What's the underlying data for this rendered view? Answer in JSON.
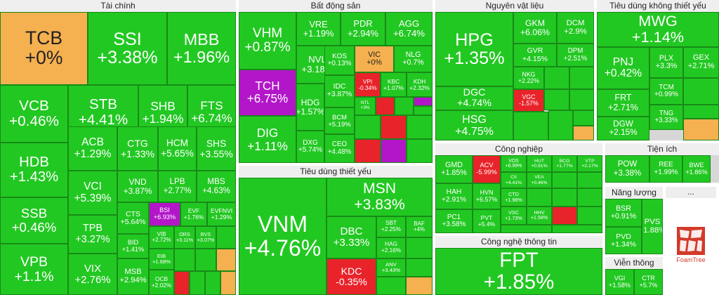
{
  "chart_data": {
    "type": "treemap",
    "colors": {
      "up": "#22c822",
      "ref": "#f5b04f",
      "ceiling": "#b316c9",
      "down": "#e8232a"
    },
    "sectors": [
      {
        "name": "Tài chính",
        "stocks": [
          {
            "ticker": "TCB",
            "change": "+0%",
            "status": "ref"
          },
          {
            "ticker": "SSI",
            "change": "+3.38%",
            "status": "up"
          },
          {
            "ticker": "MBB",
            "change": "+1.96%",
            "status": "up"
          },
          {
            "ticker": "VCB",
            "change": "+0.46%",
            "status": "up"
          },
          {
            "ticker": "STB",
            "change": "+4.41%",
            "status": "up"
          },
          {
            "ticker": "SHB",
            "change": "+1.94%",
            "status": "up"
          },
          {
            "ticker": "FTS",
            "change": "+6.74%",
            "status": "up"
          },
          {
            "ticker": "HDB",
            "change": "+1.43%",
            "status": "up"
          },
          {
            "ticker": "ACB",
            "change": "+1.29%",
            "status": "up"
          },
          {
            "ticker": "CTG",
            "change": "+1.33%",
            "status": "up"
          },
          {
            "ticker": "HCM",
            "change": "+5.65%",
            "status": "up"
          },
          {
            "ticker": "SHS",
            "change": "+3.55%",
            "status": "up"
          },
          {
            "ticker": "VCI",
            "change": "+5.39%",
            "status": "up"
          },
          {
            "ticker": "VND",
            "change": "+3.87%",
            "status": "up"
          },
          {
            "ticker": "LPB",
            "change": "+2.77%",
            "status": "up"
          },
          {
            "ticker": "MBS",
            "change": "+4.63%",
            "status": "up"
          },
          {
            "ticker": "SSB",
            "change": "+0.46%",
            "status": "up"
          },
          {
            "ticker": "TPB",
            "change": "+3.27%",
            "status": "up"
          },
          {
            "ticker": "CTS",
            "change": "+5.64%",
            "status": "up"
          },
          {
            "ticker": "BSI",
            "change": "+6.93%",
            "status": "ceiling"
          },
          {
            "ticker": "EVF",
            "change": "+1.76%",
            "status": "up"
          },
          {
            "ticker": "EVFNVI",
            "change": "+1.29%",
            "status": "up"
          },
          {
            "ticker": "BID",
            "change": "+1.41%",
            "status": "up"
          },
          {
            "ticker": "VIB",
            "change": "+2.72%",
            "status": "up"
          },
          {
            "ticker": "ORS",
            "change": "+3.11%",
            "status": "up"
          },
          {
            "ticker": "BVS",
            "change": "+3.07%",
            "status": "up"
          },
          {
            "ticker": "VPB",
            "change": "+1.1%",
            "status": "up"
          },
          {
            "ticker": "VIX",
            "change": "+2.76%",
            "status": "up"
          },
          {
            "ticker": "EIB",
            "change": "+1.68%",
            "status": "up"
          },
          {
            "ticker": "MSB",
            "change": "+2.94%",
            "status": "up"
          },
          {
            "ticker": "OCB",
            "change": "+2.02%",
            "status": "up"
          }
        ]
      },
      {
        "name": "Bất động sản",
        "stocks": [
          {
            "ticker": "VHM",
            "change": "+0.87%",
            "status": "up"
          },
          {
            "ticker": "VRE",
            "change": "+1.19%",
            "status": "up"
          },
          {
            "ticker": "PDR",
            "change": "+2.94%",
            "status": "up"
          },
          {
            "ticker": "AGG",
            "change": "+6.74%",
            "status": "up"
          },
          {
            "ticker": "TCH",
            "change": "+6.75%",
            "status": "ceiling"
          },
          {
            "ticker": "NVL",
            "change": "+3.18%",
            "status": "up"
          },
          {
            "ticker": "KOS",
            "change": "+0.13%",
            "status": "up"
          },
          {
            "ticker": "VIC",
            "change": "+0%",
            "status": "ref"
          },
          {
            "ticker": "NLG",
            "change": "+0.7%",
            "status": "up"
          },
          {
            "ticker": "VPI",
            "change": "-0.34%",
            "status": "down"
          },
          {
            "ticker": "KBC",
            "change": "+1.07%",
            "status": "up"
          },
          {
            "ticker": "KDH",
            "change": "+2.32%",
            "status": "up"
          },
          {
            "ticker": "DIG",
            "change": "+1.11%",
            "status": "up"
          },
          {
            "ticker": "HDG",
            "change": "+1.57%",
            "status": "up"
          },
          {
            "ticker": "IDC",
            "change": "+3.87%",
            "status": "up"
          },
          {
            "ticker": "NTL",
            "change": "+3%",
            "status": "up"
          },
          {
            "ticker": "BCM",
            "change": "+5.19%",
            "status": "up"
          },
          {
            "ticker": "DXG",
            "change": "+5.74%",
            "status": "up"
          },
          {
            "ticker": "CEO",
            "change": "+4.48%",
            "status": "up"
          }
        ]
      },
      {
        "name": "Nguyên vật liệu",
        "stocks": [
          {
            "ticker": "HPG",
            "change": "+1.35%",
            "status": "up"
          },
          {
            "ticker": "GKM",
            "change": "+6.06%",
            "status": "up"
          },
          {
            "ticker": "DCM",
            "change": "+2.9%",
            "status": "up"
          },
          {
            "ticker": "GVR",
            "change": "+4.15%",
            "status": "up"
          },
          {
            "ticker": "DPM",
            "change": "+2.51%",
            "status": "up"
          },
          {
            "ticker": "NKG",
            "change": "+2.22%",
            "status": "up"
          },
          {
            "ticker": "DGC",
            "change": "+4.74%",
            "status": "up"
          },
          {
            "ticker": "VGC",
            "change": "-1.57%",
            "status": "down"
          },
          {
            "ticker": "HSG",
            "change": "+4.75%",
            "status": "up"
          }
        ]
      },
      {
        "name": "Tiêu dùng không thiết yếu",
        "stocks": [
          {
            "ticker": "MWG",
            "change": "+1.14%",
            "status": "up"
          },
          {
            "ticker": "PNJ",
            "change": "+0.42%",
            "status": "up"
          },
          {
            "ticker": "PLX",
            "change": "+3.3%",
            "status": "up"
          },
          {
            "ticker": "GEX",
            "change": "+2.71%",
            "status": "up"
          },
          {
            "ticker": "FRT",
            "change": "+2.71%",
            "status": "up"
          },
          {
            "ticker": "TCM",
            "change": "+0.99%",
            "status": "up"
          },
          {
            "ticker": "DGW",
            "change": "+2.15%",
            "status": "up"
          },
          {
            "ticker": "TNG",
            "change": "+3.33%",
            "status": "up"
          }
        ]
      },
      {
        "name": "Công nghiệp",
        "stocks": [
          {
            "ticker": "GMD",
            "change": "+1.85%",
            "status": "up"
          },
          {
            "ticker": "ACV",
            "change": "-5.99%",
            "status": "down"
          },
          {
            "ticker": "VOS",
            "change": "+6.99%",
            "status": "up"
          },
          {
            "ticker": "HUT",
            "change": "+0.91%",
            "status": "up"
          },
          {
            "ticker": "BCG",
            "change": "+1.77%",
            "status": "up"
          },
          {
            "ticker": "VTP",
            "change": "+2.17%",
            "status": "up"
          },
          {
            "ticker": "HAH",
            "change": "+2.91%",
            "status": "up"
          },
          {
            "ticker": "HVN",
            "change": "+6.57%",
            "status": "up"
          },
          {
            "ticker": "CII",
            "change": "+4.41%",
            "status": "up"
          },
          {
            "ticker": "VEA",
            "change": "+0.46%",
            "status": "up"
          },
          {
            "ticker": "PC1",
            "change": "+3.58%",
            "status": "up"
          },
          {
            "ticker": "PVT",
            "change": "+5.4%",
            "status": "up"
          },
          {
            "ticker": "CTD",
            "change": "+1.98%",
            "status": "up"
          },
          {
            "ticker": "VSC",
            "change": "+1.73%",
            "status": "up"
          },
          {
            "ticker": "HHV",
            "change": "+1.58%",
            "status": "up"
          }
        ]
      },
      {
        "name": "Tiện ích",
        "stocks": [
          {
            "ticker": "POW",
            "change": "+3.38%",
            "status": "up"
          },
          {
            "ticker": "REE",
            "change": "+1.99%",
            "status": "up"
          },
          {
            "ticker": "BWE",
            "change": "+1.86%",
            "status": "up"
          }
        ]
      },
      {
        "name": "Tiêu dùng thiết yếu",
        "stocks": [
          {
            "ticker": "VNM",
            "change": "+4.76%",
            "status": "up"
          },
          {
            "ticker": "MSN",
            "change": "+3.83%",
            "status": "up"
          },
          {
            "ticker": "DBC",
            "change": "+3.33%",
            "status": "up"
          },
          {
            "ticker": "SBT",
            "change": "+2.25%",
            "status": "up"
          },
          {
            "ticker": "BAF",
            "change": "+4%",
            "status": "up"
          },
          {
            "ticker": "HAG",
            "change": "+2.16%",
            "status": "up"
          },
          {
            "ticker": "KDC",
            "change": "-0.35%",
            "status": "down"
          },
          {
            "ticker": "ANV",
            "change": "+3.43%",
            "status": "up"
          }
        ]
      },
      {
        "name": "Năng lượng",
        "stocks": [
          {
            "ticker": "BSR",
            "change": "+0.91%",
            "status": "up"
          },
          {
            "ticker": "PVS",
            "change": "+1.88%",
            "status": "up"
          },
          {
            "ticker": "PVD",
            "change": "+1.34%",
            "status": "up"
          }
        ]
      },
      {
        "name": "Công nghệ thông tin",
        "stocks": [
          {
            "ticker": "FPT",
            "change": "+1.85%",
            "status": "up"
          }
        ]
      },
      {
        "name": "Viễn thông",
        "stocks": [
          {
            "ticker": "VGI",
            "change": "+1.58%",
            "status": "up"
          },
          {
            "ticker": "CTR",
            "change": "+5.7%",
            "status": "up"
          }
        ]
      }
    ]
  },
  "more_label": "...",
  "brand": "FoamTree"
}
